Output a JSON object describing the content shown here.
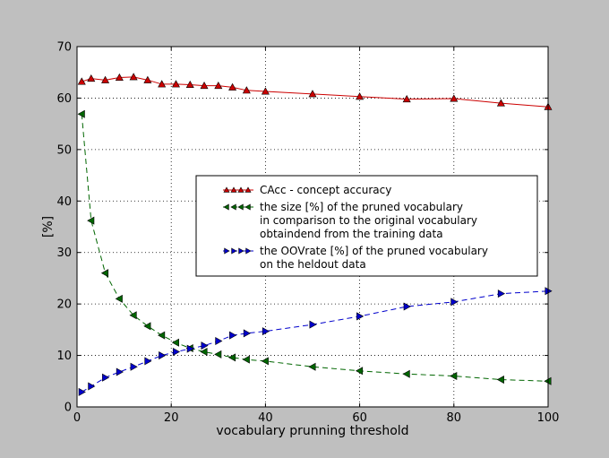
{
  "chart_data": {
    "type": "line",
    "xlabel": "vocabulary prunning threshold",
    "ylabel": "[%]",
    "xlim": [
      0,
      100
    ],
    "ylim": [
      0,
      70
    ],
    "xticks": [
      0,
      20,
      40,
      60,
      80,
      100
    ],
    "yticks": [
      0,
      10,
      20,
      30,
      40,
      50,
      60,
      70
    ],
    "grid": true,
    "legend_position": "center-right",
    "series": [
      {
        "name": "CAcc - concept accuracy",
        "color": "#cc0000",
        "marker": "triangle-up",
        "linestyle": "solid",
        "legend_lines": [
          "CAcc - concept accuracy"
        ],
        "points": [
          [
            1,
            63.2
          ],
          [
            3,
            63.8
          ],
          [
            6,
            63.5
          ],
          [
            9,
            64.0
          ],
          [
            12,
            64.1
          ],
          [
            15,
            63.5
          ],
          [
            18,
            62.7
          ],
          [
            21,
            62.7
          ],
          [
            24,
            62.6
          ],
          [
            27,
            62.4
          ],
          [
            30,
            62.4
          ],
          [
            33,
            62.1
          ],
          [
            36,
            61.5
          ],
          [
            40,
            61.3
          ],
          [
            50,
            60.8
          ],
          [
            60,
            60.3
          ],
          [
            70,
            59.8
          ],
          [
            80,
            59.9
          ],
          [
            90,
            59.0
          ],
          [
            100,
            58.3
          ]
        ]
      },
      {
        "name": "the size [%] of the pruned vocabulary in comparison to the original vocabulary obtaindend from the training data",
        "color": "#006600",
        "marker": "triangle-left",
        "linestyle": "dashed",
        "legend_lines": [
          "the size [%] of the pruned vocabulary",
          "in comparison to the original vocabulary",
          "obtaindend from the training data"
        ],
        "points": [
          [
            1,
            56.9
          ],
          [
            3,
            36.2
          ],
          [
            6,
            26.0
          ],
          [
            9,
            21.0
          ],
          [
            12,
            17.8
          ],
          [
            15,
            15.7
          ],
          [
            18,
            13.9
          ],
          [
            21,
            12.5
          ],
          [
            24,
            11.4
          ],
          [
            27,
            10.7
          ],
          [
            30,
            10.2
          ],
          [
            33,
            9.6
          ],
          [
            36,
            9.2
          ],
          [
            40,
            8.9
          ],
          [
            50,
            7.8
          ],
          [
            60,
            7.0
          ],
          [
            70,
            6.4
          ],
          [
            80,
            6.0
          ],
          [
            90,
            5.3
          ],
          [
            100,
            5.0
          ]
        ]
      },
      {
        "name": "the OOVrate [%] of the pruned vocabulary on the heldout data",
        "color": "#0000cc",
        "marker": "triangle-right",
        "linestyle": "dashed",
        "legend_lines": [
          "the OOVrate [%] of the pruned vocabulary",
          "on the heldout data"
        ],
        "points": [
          [
            1,
            2.9
          ],
          [
            3,
            4.0
          ],
          [
            6,
            5.7
          ],
          [
            9,
            6.8
          ],
          [
            12,
            7.8
          ],
          [
            15,
            8.9
          ],
          [
            18,
            10.0
          ],
          [
            21,
            10.7
          ],
          [
            24,
            11.3
          ],
          [
            27,
            11.9
          ],
          [
            30,
            12.8
          ],
          [
            33,
            13.9
          ],
          [
            36,
            14.3
          ],
          [
            40,
            14.7
          ],
          [
            50,
            16.0
          ],
          [
            60,
            17.6
          ],
          [
            70,
            19.5
          ],
          [
            80,
            20.4
          ],
          [
            90,
            22.0
          ],
          [
            100,
            22.5
          ]
        ]
      }
    ]
  }
}
